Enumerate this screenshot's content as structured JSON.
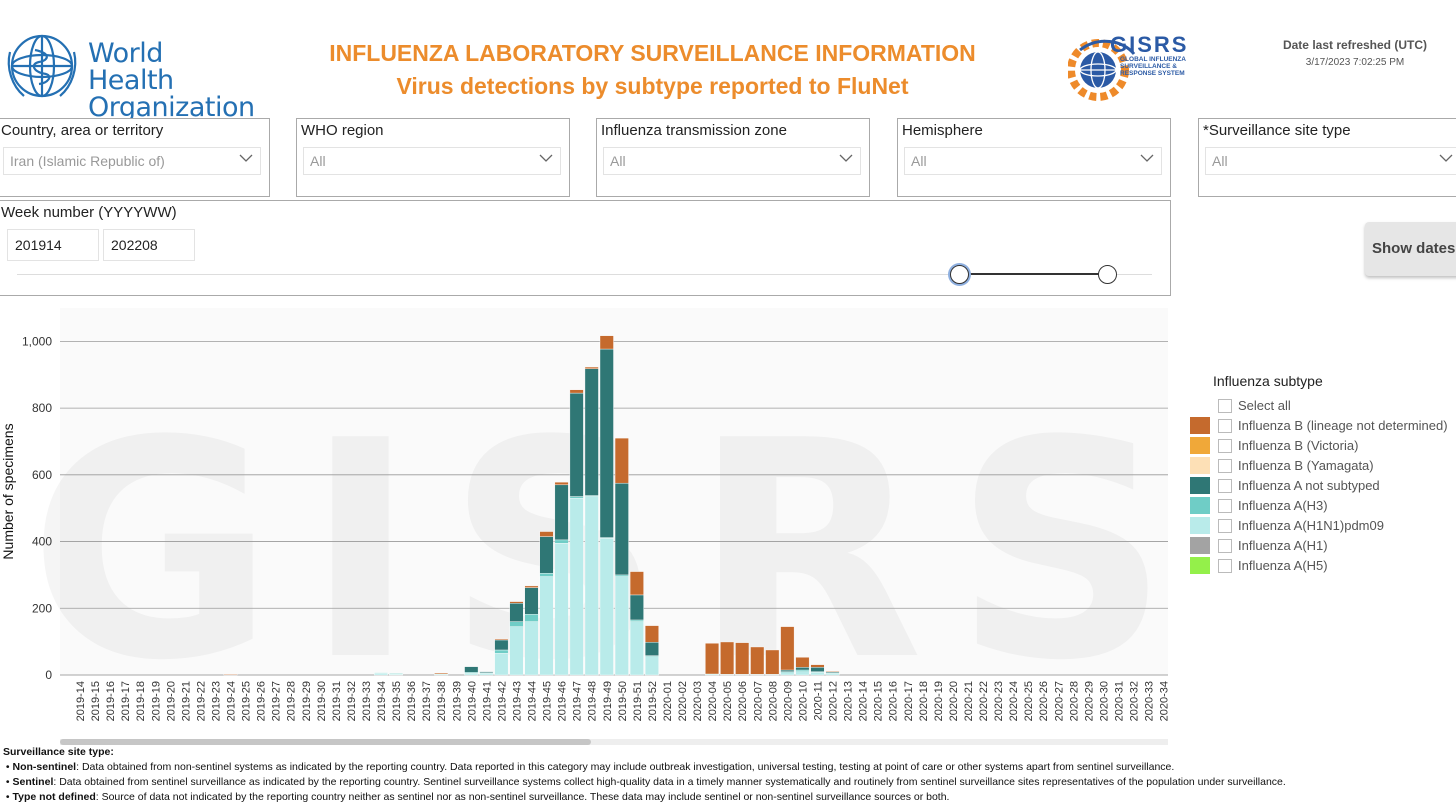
{
  "header": {
    "org_line1": "World Health",
    "org_line2": "Organization",
    "title_line1": "INFLUENZA LABORATORY SURVEILLANCE INFORMATION",
    "title_line2": "Virus detections by subtype reported to FluNet",
    "gisrs_logo": {
      "name": "GISRS",
      "line1": "GLOBAL INFLUENZA",
      "line2": "SURVEILLANCE &",
      "line3": "RESPONSE SYSTEM"
    },
    "refresh_label": "Date last refreshed (UTC)",
    "refresh_value": "3/17/2023 7:02:25 PM"
  },
  "filters": {
    "country": {
      "label": "Country, area or territory",
      "value": "Iran (Islamic Republic of)"
    },
    "who_region": {
      "label": "WHO region",
      "value": "All"
    },
    "transmission_zone": {
      "label": "Influenza transmission zone",
      "value": "All"
    },
    "hemisphere": {
      "label": "Hemisphere",
      "value": "All"
    },
    "site_type": {
      "label": "*Surveillance site type",
      "value": "All"
    },
    "week": {
      "label": "Week number (YYYYWW)",
      "start": "201914",
      "end": "202208",
      "slider_start": 0.83,
      "slider_end": 1.0
    }
  },
  "show_dates_label": "Show dates",
  "legend": {
    "title": "Influenza subtype",
    "select_all": "Select all",
    "items": [
      {
        "label": "Influenza B (lineage not determined)",
        "color": "#c56a2d"
      },
      {
        "label": "Influenza B (Victoria)",
        "color": "#f0a839"
      },
      {
        "label": "Influenza B (Yamagata)",
        "color": "#fde0b6"
      },
      {
        "label": "Influenza A not subtyped",
        "color": "#2f7775"
      },
      {
        "label": "Influenza A(H3)",
        "color": "#6fcdc6"
      },
      {
        "label": "Influenza A(H1N1)pdm09",
        "color": "#b9ebea"
      },
      {
        "label": "Influenza A(H1)",
        "color": "#a3a3a3"
      },
      {
        "label": "Influenza A(H5)",
        "color": "#94f04a"
      }
    ]
  },
  "watermark": "GISRS",
  "chart_data": {
    "type": "bar",
    "stacked": true,
    "ylabel": "Number of specimens",
    "xlabel": "",
    "ylim": [
      0,
      1100
    ],
    "yticks": [
      0,
      200,
      400,
      600,
      800,
      1000
    ],
    "ytick_labels": [
      "0",
      "200",
      "400",
      "600",
      "800",
      "1,000"
    ],
    "grid": true,
    "categories": [
      "2019-14",
      "2019-15",
      "2019-16",
      "2019-17",
      "2019-18",
      "2019-19",
      "2019-20",
      "2019-21",
      "2019-22",
      "2019-23",
      "2019-24",
      "2019-25",
      "2019-26",
      "2019-27",
      "2019-28",
      "2019-29",
      "2019-30",
      "2019-31",
      "2019-32",
      "2019-33",
      "2019-34",
      "2019-35",
      "2019-36",
      "2019-37",
      "2019-38",
      "2019-39",
      "2019-40",
      "2019-41",
      "2019-42",
      "2019-43",
      "2019-44",
      "2019-45",
      "2019-46",
      "2019-47",
      "2019-48",
      "2019-49",
      "2019-50",
      "2019-51",
      "2019-52",
      "2020-01",
      "2020-02",
      "2020-03",
      "2020-04",
      "2020-05",
      "2020-06",
      "2020-07",
      "2020-08",
      "2020-09",
      "2020-10",
      "2020-11",
      "2020-12",
      "2020-13",
      "2020-14",
      "2020-15",
      "2020-16",
      "2020-17",
      "2020-18",
      "2020-19",
      "2020-20",
      "2020-21",
      "2020-22",
      "2020-23",
      "2020-24",
      "2020-25",
      "2020-26",
      "2020-27",
      "2020-28",
      "2020-29",
      "2020-30",
      "2020-31",
      "2020-32",
      "2020-33",
      "2020-34"
    ],
    "series": [
      {
        "name": "Influenza A(H1N1)pdm09",
        "color": "#b9ebea",
        "values": [
          0,
          0,
          0,
          0,
          0,
          0,
          0,
          0,
          0,
          0,
          0,
          0,
          0,
          0,
          0,
          0,
          0,
          0,
          0,
          0,
          5,
          3,
          0,
          0,
          3,
          0,
          5,
          5,
          65,
          145,
          160,
          295,
          395,
          530,
          535,
          410,
          295,
          160,
          55,
          0,
          0,
          0,
          3,
          2,
          2,
          2,
          2,
          7,
          10,
          8,
          5,
          0,
          0,
          0,
          0,
          0,
          0,
          0,
          0,
          0,
          0,
          0,
          0,
          0,
          0,
          0,
          0,
          0,
          0,
          0,
          0,
          0,
          0
        ]
      },
      {
        "name": "Influenza A(H3)",
        "color": "#6fcdc6",
        "values": [
          0,
          0,
          0,
          0,
          0,
          0,
          0,
          0,
          0,
          0,
          0,
          0,
          0,
          0,
          0,
          0,
          0,
          0,
          0,
          0,
          2,
          2,
          0,
          0,
          0,
          0,
          3,
          2,
          10,
          15,
          22,
          10,
          10,
          5,
          3,
          2,
          5,
          5,
          3,
          0,
          0,
          0,
          0,
          0,
          0,
          0,
          0,
          3,
          5,
          2,
          2,
          0,
          0,
          0,
          0,
          0,
          0,
          0,
          0,
          0,
          0,
          0,
          0,
          0,
          0,
          0,
          0,
          0,
          0,
          0,
          0,
          0,
          0
        ]
      },
      {
        "name": "Influenza A not subtyped",
        "color": "#2f7775",
        "values": [
          0,
          0,
          0,
          0,
          0,
          0,
          0,
          0,
          0,
          0,
          0,
          0,
          0,
          0,
          0,
          0,
          0,
          0,
          0,
          0,
          0,
          0,
          0,
          0,
          0,
          0,
          17,
          3,
          30,
          55,
          80,
          110,
          165,
          310,
          380,
          565,
          275,
          75,
          40,
          0,
          0,
          0,
          0,
          0,
          0,
          0,
          0,
          5,
          8,
          13,
          3,
          0,
          0,
          0,
          0,
          0,
          0,
          0,
          0,
          0,
          0,
          0,
          0,
          0,
          0,
          0,
          0,
          0,
          0,
          0,
          0,
          0,
          0
        ]
      },
      {
        "name": "Influenza B (lineage not determined)",
        "color": "#c56a2d",
        "values": [
          0,
          0,
          0,
          0,
          0,
          0,
          0,
          0,
          0,
          0,
          2,
          0,
          0,
          0,
          0,
          0,
          0,
          0,
          0,
          0,
          0,
          0,
          0,
          0,
          3,
          0,
          0,
          0,
          3,
          5,
          5,
          15,
          8,
          10,
          5,
          40,
          135,
          70,
          50,
          0,
          0,
          0,
          92,
          97,
          95,
          82,
          73,
          130,
          30,
          8,
          2,
          0,
          0,
          0,
          0,
          0,
          0,
          0,
          0,
          0,
          0,
          0,
          0,
          0,
          0,
          0,
          0,
          0,
          0,
          0,
          0,
          0,
          0
        ]
      }
    ]
  },
  "footnotes": {
    "heading": "Surveillance site type:",
    "items": [
      {
        "term": "Non-sentinel",
        "text": ": Data obtained from non-sentinel systems as indicated by the reporting country. Data reported in this category may include outbreak investigation, universal testing, testing at point of care or other systems apart from sentinel surveillance."
      },
      {
        "term": "Sentinel",
        "text": ": Data obtained from sentinel surveillance as indicated by the reporting country. Sentinel surveillance systems collect high-quality data in a timely manner systematically and routinely from sentinel surveillance sites representatives of the population under surveillance."
      },
      {
        "term": "Type not defined",
        "text": ": Source of data not indicated by the reporting country neither as sentinel nor as non-sentinel surveillance. These data may include sentinel or non-sentinel surveillance sources or both."
      }
    ]
  }
}
